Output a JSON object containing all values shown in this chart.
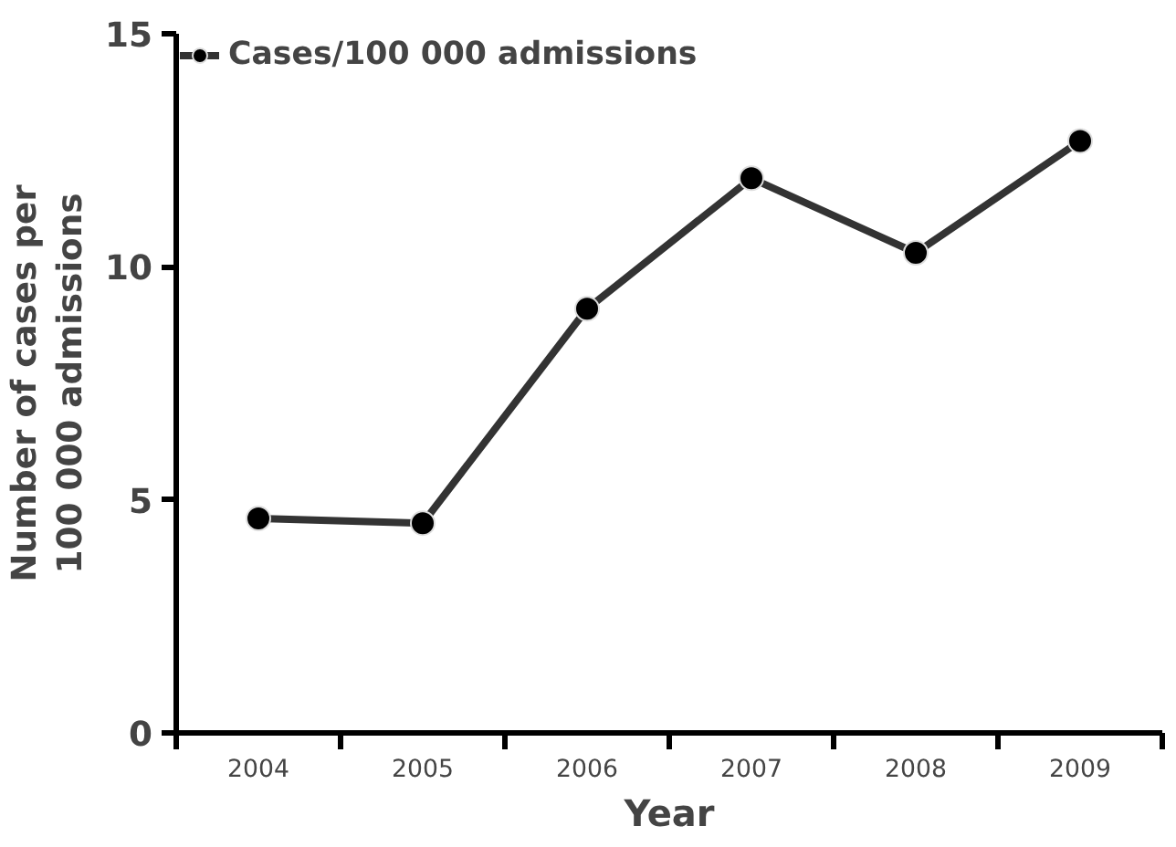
{
  "chart_data": {
    "type": "line",
    "xlabel": "Year",
    "ylabel": "Number of cases per\n100 000 admissions",
    "categories": [
      "2004",
      "2005",
      "2006",
      "2007",
      "2008",
      "2009"
    ],
    "series": [
      {
        "name": "Cases/100 000 admissions",
        "color": "#000000",
        "values": [
          4.6,
          4.5,
          9.1,
          11.9,
          10.3,
          12.7
        ]
      }
    ],
    "ylim": [
      0,
      15
    ],
    "yticks": [
      0,
      5,
      10,
      15
    ],
    "grid": false,
    "legend": "top left",
    "marker": "circle",
    "line_style": "solid"
  }
}
